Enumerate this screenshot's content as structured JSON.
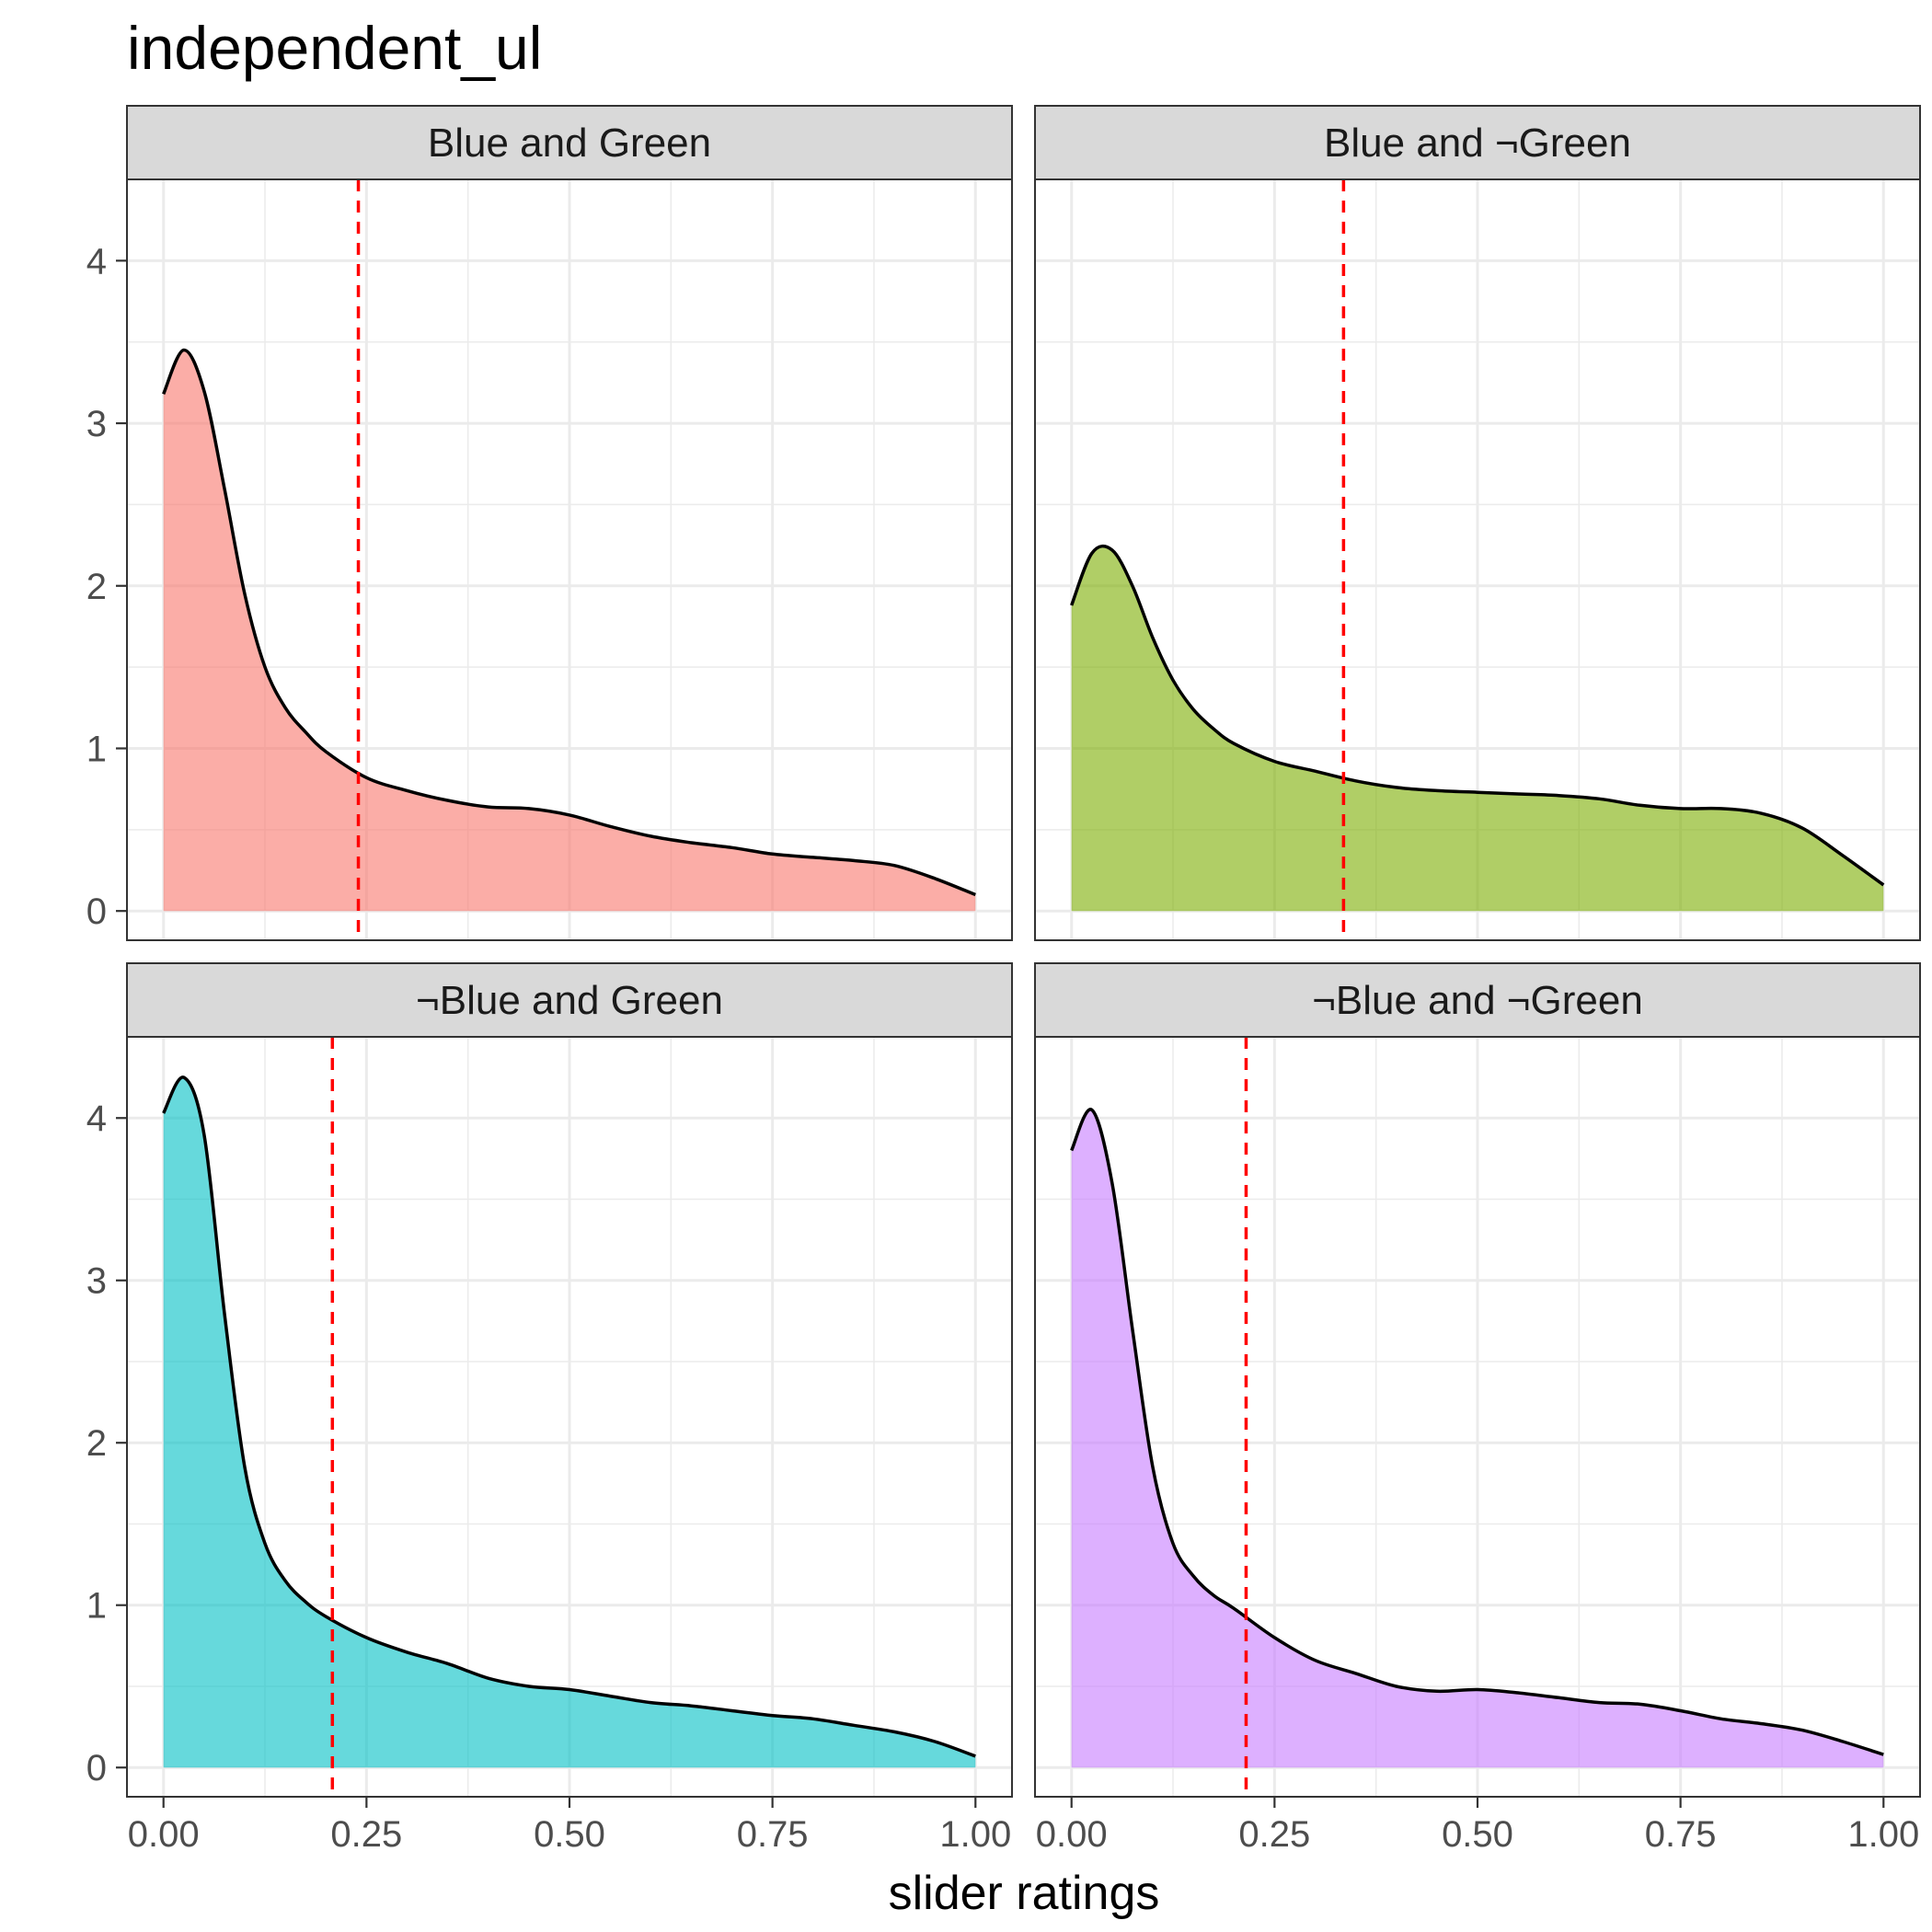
{
  "chart_data": {
    "type": "area",
    "title": "independent_ul",
    "xlabel": "slider ratings",
    "ylabel": "",
    "xlim": [
      0,
      1
    ],
    "ylim": [
      0,
      4.5
    ],
    "x_ticks": [
      "0.00",
      "0.25",
      "0.50",
      "0.75",
      "1.00"
    ],
    "y_ticks": [
      "0",
      "1",
      "2",
      "3",
      "4"
    ],
    "grid": true,
    "legend": "none",
    "reference_line": "dashed vertical line",
    "reference_line_color": "#ff0000",
    "line_color": "#000000",
    "x": [
      0,
      0.025,
      0.05,
      0.075,
      0.1,
      0.125,
      0.15,
      0.175,
      0.2,
      0.25,
      0.3,
      0.35,
      0.4,
      0.45,
      0.5,
      0.55,
      0.6,
      0.65,
      0.7,
      0.75,
      0.8,
      0.85,
      0.9,
      0.95,
      1.0
    ],
    "panels": [
      {
        "label": "Blue and Green",
        "color": "#F8766D",
        "mean": 0.24,
        "y": [
          3.18,
          3.45,
          3.2,
          2.6,
          1.95,
          1.5,
          1.25,
          1.1,
          0.98,
          0.82,
          0.74,
          0.68,
          0.64,
          0.63,
          0.59,
          0.52,
          0.46,
          0.42,
          0.39,
          0.35,
          0.33,
          0.31,
          0.28,
          0.2,
          0.1
        ]
      },
      {
        "label": "Blue and ¬Green",
        "color": "#7CAE00",
        "mean": 0.335,
        "y": [
          1.88,
          2.2,
          2.22,
          2.0,
          1.68,
          1.42,
          1.24,
          1.12,
          1.03,
          0.92,
          0.86,
          0.8,
          0.76,
          0.74,
          0.73,
          0.72,
          0.71,
          0.69,
          0.65,
          0.63,
          0.63,
          0.6,
          0.51,
          0.34,
          0.16
        ]
      },
      {
        "label": "¬Blue and Green",
        "color": "#00BFC4",
        "mean": 0.208,
        "y": [
          4.03,
          4.25,
          3.9,
          2.8,
          1.85,
          1.38,
          1.15,
          1.02,
          0.93,
          0.8,
          0.71,
          0.64,
          0.55,
          0.5,
          0.48,
          0.44,
          0.4,
          0.38,
          0.35,
          0.32,
          0.3,
          0.26,
          0.22,
          0.16,
          0.07
        ]
      },
      {
        "label": "¬Blue and ¬Green",
        "color": "#C77CFF",
        "mean": 0.215,
        "y": [
          3.8,
          4.05,
          3.6,
          2.7,
          1.85,
          1.38,
          1.18,
          1.06,
          0.98,
          0.8,
          0.66,
          0.58,
          0.5,
          0.47,
          0.48,
          0.46,
          0.43,
          0.4,
          0.39,
          0.35,
          0.3,
          0.27,
          0.23,
          0.16,
          0.08
        ]
      }
    ]
  }
}
